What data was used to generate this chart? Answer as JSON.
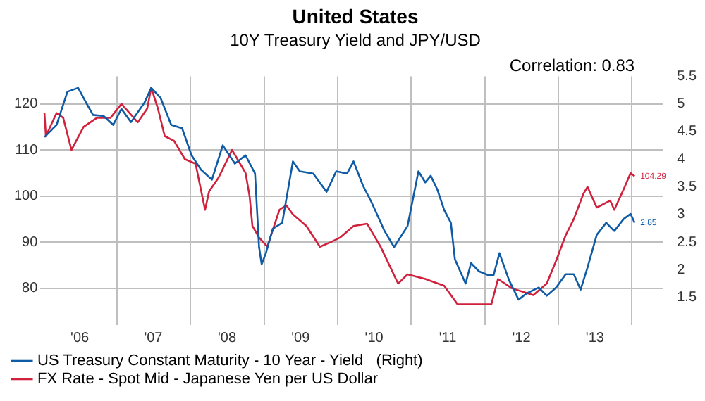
{
  "chart_data": {
    "type": "line",
    "title": "United States",
    "subtitle": "10Y Treasury Yield and JPY/USD",
    "annotations": [
      "Correlation: 0.83"
    ],
    "xlim": [
      "2005-12-18",
      "2014-06-03"
    ],
    "xticks": [
      {
        "value": "2006-07-01",
        "label": "'06"
      },
      {
        "value": "2007-01-01",
        "label": null
      },
      {
        "value": "2007-07-01",
        "label": "'07"
      },
      {
        "value": "2008-01-01",
        "label": null
      },
      {
        "value": "2008-07-01",
        "label": "'08"
      },
      {
        "value": "2009-01-01",
        "label": null
      },
      {
        "value": "2009-07-01",
        "label": "'09"
      },
      {
        "value": "2010-01-01",
        "label": null
      },
      {
        "value": "2010-07-01",
        "label": "'10"
      },
      {
        "value": "2011-01-01",
        "label": null
      },
      {
        "value": "2011-07-01",
        "label": "'11"
      },
      {
        "value": "2012-01-01",
        "label": null
      },
      {
        "value": "2012-07-01",
        "label": "'12"
      },
      {
        "value": "2013-01-01",
        "label": null
      },
      {
        "value": "2013-07-01",
        "label": "'13"
      },
      {
        "value": "2014-01-01",
        "label": null
      }
    ],
    "ylim": [
      72,
      126
    ],
    "yticks": [
      80,
      90,
      100,
      110,
      120
    ],
    "y2lim": [
      1,
      5.5
    ],
    "y2ticks": [
      1.5,
      2,
      2.5,
      3,
      3.5,
      4,
      4.5,
      5,
      5.5
    ],
    "grid": true,
    "legend": "bottom",
    "marker": "none",
    "line_style": "solid",
    "series": [
      {
        "name": "US Treasury Constant Maturity - 10 Year - Yield   (Right)",
        "color": "#0f5ba6",
        "axis": "y2",
        "x": [
          "2006-01-07",
          "2006-03-08",
          "2006-05-01",
          "2006-06-23",
          "2006-08-02",
          "2006-09-05",
          "2006-10-28",
          "2006-12-14",
          "2007-01-24",
          "2007-03-12",
          "2007-05-18",
          "2007-06-21",
          "2007-08-06",
          "2007-09-28",
          "2007-11-21",
          "2008-01-07",
          "2008-02-23",
          "2008-04-17",
          "2008-06-10",
          "2008-08-09",
          "2008-10-01",
          "2008-11-17",
          "2008-12-07",
          "2008-12-20",
          "2009-01-10",
          "2009-02-13",
          "2009-04-01",
          "2009-05-24",
          "2009-06-27",
          "2009-09-02",
          "2009-11-07",
          "2009-12-25",
          "2010-02-17",
          "2010-03-21",
          "2010-05-07",
          "2010-06-17",
          "2010-08-22",
          "2010-10-08",
          "2010-12-14",
          "2011-02-06",
          "2011-03-12",
          "2011-04-08",
          "2011-05-11",
          "2011-06-14",
          "2011-07-17",
          "2011-08-06",
          "2011-09-28",
          "2011-10-25",
          "2011-12-04",
          "2012-01-20",
          "2012-02-14",
          "2012-03-14",
          "2012-05-01",
          "2012-06-17",
          "2012-07-26",
          "2012-09-25",
          "2012-11-04",
          "2012-12-21",
          "2013-02-06",
          "2013-03-18",
          "2013-04-21",
          "2013-05-25",
          "2013-07-10",
          "2013-08-26",
          "2013-10-05",
          "2013-11-21",
          "2013-12-25",
          "2014-01-14"
        ],
        "values": [
          4.4,
          4.62,
          5.22,
          5.29,
          5.02,
          4.8,
          4.78,
          4.62,
          4.91,
          4.67,
          5.02,
          5.29,
          5.11,
          4.62,
          4.56,
          4.07,
          3.81,
          3.63,
          4.25,
          3.92,
          4.07,
          3.74,
          2.41,
          2.1,
          2.3,
          2.74,
          2.85,
          3.96,
          3.78,
          3.74,
          3.41,
          3.78,
          3.74,
          3.96,
          3.52,
          3.23,
          2.7,
          2.41,
          2.79,
          3.78,
          3.58,
          3.7,
          3.45,
          3.08,
          2.85,
          2.19,
          1.75,
          2.12,
          1.97,
          1.9,
          1.9,
          2.3,
          1.81,
          1.46,
          1.57,
          1.68,
          1.53,
          1.68,
          1.92,
          1.92,
          1.64,
          2.04,
          2.63,
          2.85,
          2.7,
          2.92,
          3.01,
          2.85
        ],
        "value_labels": [
          null,
          null,
          null,
          null,
          null,
          null,
          null,
          null,
          null,
          null,
          null,
          null,
          null,
          null,
          null,
          null,
          null,
          null,
          null,
          null,
          null,
          null,
          null,
          null,
          null,
          null,
          null,
          null,
          null,
          null,
          null,
          null,
          null,
          null,
          null,
          null,
          null,
          null,
          null,
          null,
          null,
          null,
          null,
          null,
          null,
          null,
          null,
          null,
          null,
          null,
          null,
          null,
          null,
          null,
          null,
          null,
          null,
          null,
          null,
          null,
          null,
          null,
          null,
          null,
          null,
          null,
          null,
          "2.85"
        ]
      },
      {
        "name": "FX Rate - Spot Mid - Japanese Yen per US Dollar",
        "color": "#d0213d",
        "x": [
          "2006-01-07",
          "2006-01-14",
          "2006-03-08",
          "2006-04-10",
          "2006-05-21",
          "2006-07-20",
          "2006-09-25",
          "2006-12-01",
          "2007-01-24",
          "2007-04-15",
          "2007-06-01",
          "2007-06-21",
          "2007-07-24",
          "2007-08-27",
          "2007-10-12",
          "2007-12-05",
          "2008-01-27",
          "2008-03-14",
          "2008-04-03",
          "2008-05-20",
          "2008-07-26",
          "2008-10-01",
          "2008-10-21",
          "2008-11-04",
          "2008-12-07",
          "2009-01-17",
          "2009-03-18",
          "2009-04-21",
          "2009-05-24",
          "2009-07-30",
          "2009-10-05",
          "2009-11-28",
          "2010-01-14",
          "2010-03-21",
          "2010-05-27",
          "2010-08-02",
          "2010-10-28",
          "2010-12-14",
          "2011-03-12",
          "2011-06-14",
          "2011-08-19",
          "2011-11-14",
          "2012-02-03",
          "2012-03-07",
          "2012-05-14",
          "2012-08-29",
          "2012-11-04",
          "2012-12-21",
          "2013-02-06",
          "2013-03-18",
          "2013-05-05",
          "2013-05-25",
          "2013-07-10",
          "2013-09-15",
          "2013-10-05",
          "2013-11-21",
          "2013-12-25",
          "2014-01-14"
        ],
        "values": [
          118,
          113,
          118,
          117,
          110,
          115,
          117,
          117,
          120,
          116,
          119,
          123.5,
          119,
          113,
          112,
          108,
          107,
          97,
          101,
          104,
          110,
          105,
          100,
          93.5,
          91,
          89,
          97,
          98,
          96,
          93.5,
          89,
          90,
          91,
          93.5,
          94,
          89,
          81,
          83,
          82,
          80.5,
          76.5,
          76.5,
          76.5,
          82,
          80,
          78.5,
          81,
          86,
          91.5,
          95,
          100.5,
          102,
          97.5,
          99,
          97,
          101.5,
          105,
          104.29
        ],
        "value_labels": [
          null,
          null,
          null,
          null,
          null,
          null,
          null,
          null,
          null,
          null,
          null,
          null,
          null,
          null,
          null,
          null,
          null,
          null,
          null,
          null,
          null,
          null,
          null,
          null,
          null,
          null,
          null,
          null,
          null,
          null,
          null,
          null,
          null,
          null,
          null,
          null,
          null,
          null,
          null,
          null,
          null,
          null,
          null,
          null,
          null,
          null,
          null,
          null,
          null,
          null,
          null,
          null,
          null,
          null,
          null,
          null,
          null,
          "104.29"
        ]
      }
    ]
  }
}
